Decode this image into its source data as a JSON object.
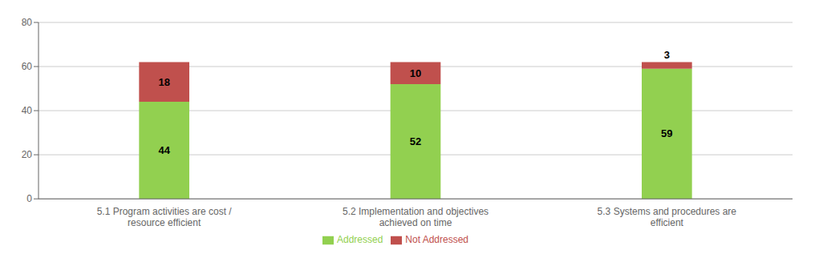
{
  "chart_data": {
    "type": "bar",
    "stacked": true,
    "categories": [
      "5.1 Program activities are cost /\nresource efficient",
      "5.2 Implementation and objectives\nachieved on time",
      "5.3 Systems and procedures are\nefficient"
    ],
    "series": [
      {
        "name": "Addressed",
        "color": "#92d050",
        "values": [
          44,
          52,
          59
        ]
      },
      {
        "name": "Not Addressed",
        "color": "#c0504d",
        "values": [
          18,
          10,
          3
        ]
      }
    ],
    "ylim": [
      0,
      80
    ],
    "yticks": [
      0,
      20,
      40,
      60,
      80
    ],
    "grid": true,
    "legend": "bottom",
    "data_labels": true
  }
}
